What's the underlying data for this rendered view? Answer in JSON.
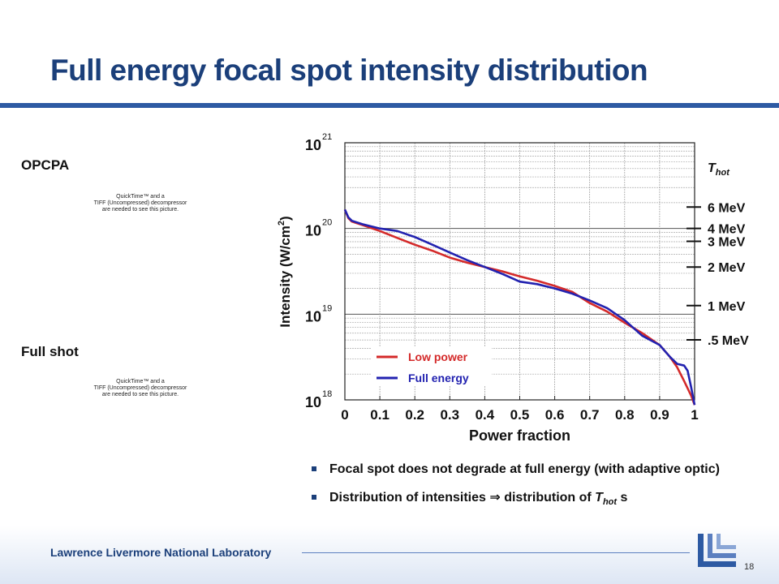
{
  "slide": {
    "title": "Full energy focal spot intensity distribution",
    "label_opcpa": "OPCPA",
    "label_fullshot": "Full shot",
    "placeholder_lines": [
      "QuickTime™ and a",
      "TIFF (Uncompressed) decompressor",
      "are needed to see this picture."
    ],
    "bullets": [
      {
        "text": "Focal spot does not degrade at full energy (with adaptive optic)"
      },
      {
        "text_before": "Distribution of intensities ",
        "arrow": "⇒",
        "text_mid": " distribution of ",
        "thot": "T",
        "thot_sub": "hot",
        "text_after": " s"
      }
    ],
    "footer": "Lawrence Livermore National Laboratory",
    "page_number": "18",
    "colors": {
      "title": "#1b3f7a",
      "accent_bar": "#2d5aa3",
      "low_power": "#d42a2a",
      "full_energy": "#2222b0"
    }
  },
  "chart_data": {
    "type": "line",
    "xlabel": "Power fraction",
    "ylabel": "Intensity (W/cm",
    "ylabel_sup": "2",
    "ylabel_close": ")",
    "xlim": [
      0,
      1
    ],
    "ylim_log10": [
      18,
      21
    ],
    "y_scale": "log",
    "grid": true,
    "x_ticks": [
      "0",
      "0.1",
      "0.2",
      "0.3",
      "0.4",
      "0.5",
      "0.6",
      "0.7",
      "0.8",
      "0.9",
      "1"
    ],
    "y_ticks": [
      {
        "base": "10",
        "exp": "18",
        "log": 18
      },
      {
        "base": "10",
        "exp": "19",
        "log": 19
      },
      {
        "base": "10",
        "exp": "20",
        "log": 20
      },
      {
        "base": "10",
        "exp": "21",
        "log": 21
      }
    ],
    "legend_position": "bottom-left",
    "series": [
      {
        "name": "Low power",
        "color": "#d42a2a",
        "points": [
          [
            0,
            20.22
          ],
          [
            0.01,
            20.12
          ],
          [
            0.02,
            20.08
          ],
          [
            0.05,
            20.04
          ],
          [
            0.1,
            19.97
          ],
          [
            0.15,
            19.89
          ],
          [
            0.2,
            19.81
          ],
          [
            0.25,
            19.74
          ],
          [
            0.3,
            19.66
          ],
          [
            0.35,
            19.6
          ],
          [
            0.4,
            19.55
          ],
          [
            0.45,
            19.5
          ],
          [
            0.5,
            19.44
          ],
          [
            0.55,
            19.39
          ],
          [
            0.6,
            19.33
          ],
          [
            0.65,
            19.26
          ],
          [
            0.7,
            19.13
          ],
          [
            0.75,
            19.03
          ],
          [
            0.8,
            18.9
          ],
          [
            0.85,
            18.78
          ],
          [
            0.9,
            18.64
          ],
          [
            0.93,
            18.5
          ],
          [
            0.95,
            18.38
          ],
          [
            0.97,
            18.22
          ],
          [
            0.99,
            18.05
          ],
          [
            1.0,
            17.94
          ]
        ]
      },
      {
        "name": "Full energy",
        "color": "#2222b0",
        "points": [
          [
            0,
            20.22
          ],
          [
            0.01,
            20.13
          ],
          [
            0.02,
            20.09
          ],
          [
            0.05,
            20.05
          ],
          [
            0.1,
            20.0
          ],
          [
            0.15,
            19.97
          ],
          [
            0.2,
            19.9
          ],
          [
            0.25,
            19.81
          ],
          [
            0.3,
            19.72
          ],
          [
            0.35,
            19.63
          ],
          [
            0.4,
            19.55
          ],
          [
            0.45,
            19.47
          ],
          [
            0.5,
            19.38
          ],
          [
            0.55,
            19.35
          ],
          [
            0.6,
            19.3
          ],
          [
            0.65,
            19.24
          ],
          [
            0.7,
            19.16
          ],
          [
            0.75,
            19.07
          ],
          [
            0.8,
            18.93
          ],
          [
            0.85,
            18.75
          ],
          [
            0.9,
            18.64
          ],
          [
            0.93,
            18.5
          ],
          [
            0.95,
            18.42
          ],
          [
            0.97,
            18.4
          ],
          [
            0.98,
            18.34
          ],
          [
            0.99,
            18.15
          ],
          [
            1.0,
            17.94
          ]
        ]
      }
    ],
    "thot": {
      "title": "T",
      "title_sub": "hot",
      "levels": [
        {
          "label": "6 MeV",
          "log": 20.25
        },
        {
          "label": "4 MeV",
          "log": 20.0
        },
        {
          "label": "3 MeV",
          "log": 19.85
        },
        {
          "label": "2 MeV",
          "log": 19.55
        },
        {
          "label": "1 MeV",
          "log": 19.1
        },
        {
          "label": ".5 MeV",
          "log": 18.7
        }
      ]
    }
  }
}
